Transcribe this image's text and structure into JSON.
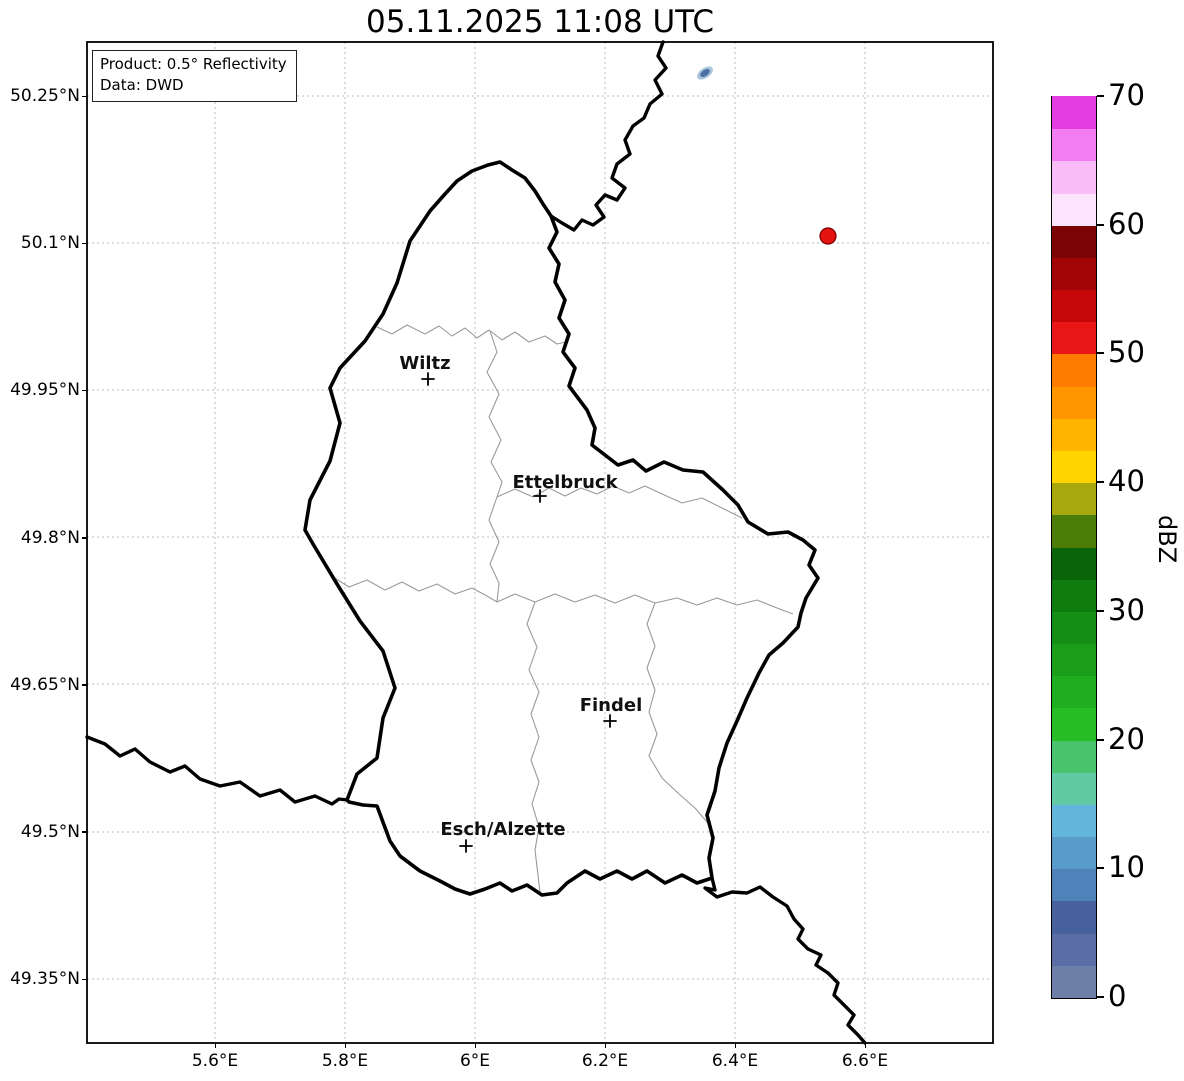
{
  "title": "05.11.2025 11:08 UTC",
  "info_box": {
    "product_line": "Product: 0.5° Reflectivity",
    "data_line": "Data: DWD"
  },
  "axes": {
    "lat_labels": [
      "50.25°N",
      "50.1°N",
      "49.95°N",
      "49.8°N",
      "49.65°N",
      "49.5°N",
      "49.35°N"
    ],
    "lon_labels": [
      "5.6°E",
      "5.8°E",
      "6°E",
      "6.2°E",
      "6.4°E",
      "6.6°E"
    ]
  },
  "cities": [
    {
      "name": "Wiltz"
    },
    {
      "name": "Ettelbruck"
    },
    {
      "name": "Findel"
    },
    {
      "name": "Esch/Alzette"
    }
  ],
  "colorbar": {
    "label": "dBZ",
    "ticks": [
      0,
      10,
      20,
      30,
      40,
      50,
      60,
      70
    ],
    "range_min": 0,
    "range_max": 70,
    "segment_step_dbz": 2.5,
    "segments_bottom_to_top": [
      "#6e7fa8",
      "#5a6da4",
      "#47609e",
      "#4f82b8",
      "#599bca",
      "#63b5dc",
      "#61c9a4",
      "#49c36e",
      "#27bd27",
      "#1fae1f",
      "#1a9e1a",
      "#158e15",
      "#0f7c0f",
      "#0a640a",
      "#4b7d08",
      "#a8a80e",
      "#ffd400",
      "#ffb400",
      "#ff9600",
      "#ff7c00",
      "#e81616",
      "#c40808",
      "#a00404",
      "#7c0404",
      "#fce4fc",
      "#f9bcf9",
      "#f27df2",
      "#e23ce2"
    ]
  },
  "echoes": [
    {
      "shape": "dot",
      "approx_lon": "6.54°E",
      "approx_lat": "50.11°N",
      "approx_dbz": 51,
      "color": "#e51212"
    },
    {
      "shape": "patch",
      "approx_lon": "6.35°E",
      "approx_lat": "50.27°N",
      "approx_dbz": 7,
      "color": "#4a6fa5"
    }
  ],
  "map_line_colors": {
    "country_border": "#000000",
    "district_border": "#9a9a9a",
    "gridline": "#bbbbbb"
  }
}
